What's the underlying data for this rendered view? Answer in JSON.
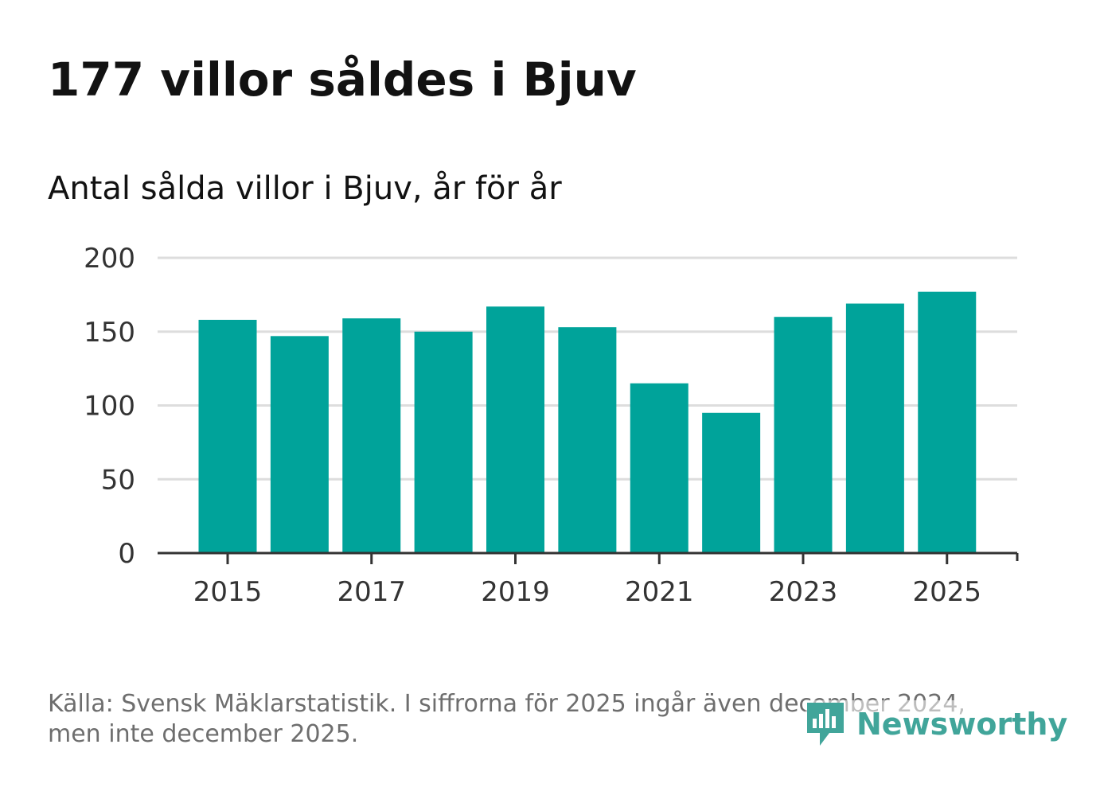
{
  "title": "177 villor såldes i Bjuv",
  "subtitle": "Antal sålda villor i Bjuv, år för år",
  "footer": {
    "line1": "Källa: Svensk Mäklarstatistik. I siffrorna för 2025 ingår även december 2024,",
    "line2": "men inte december 2025."
  },
  "brand": {
    "name": "Newsworthy",
    "icon": "newsworthy-logo-icon"
  },
  "colors": {
    "bar": "#00a39a",
    "grid": "#dddddd",
    "axis": "#333333",
    "brand": "#41a59a"
  },
  "chart_data": {
    "type": "bar",
    "title": "Antal sålda villor i Bjuv, år för år",
    "xlabel": "",
    "ylabel": "",
    "categories": [
      "2015",
      "2016",
      "2017",
      "2018",
      "2019",
      "2020",
      "2021",
      "2022",
      "2023",
      "2024",
      "2025"
    ],
    "values": [
      158,
      147,
      159,
      150,
      167,
      153,
      115,
      95,
      160,
      169,
      177
    ],
    "ylim": [
      0,
      200
    ],
    "yticks": [
      "0",
      "50",
      "100",
      "150",
      "200"
    ],
    "xtick_labels": [
      "2015",
      "2017",
      "2019",
      "2021",
      "2023",
      "2025"
    ],
    "grid": true
  }
}
